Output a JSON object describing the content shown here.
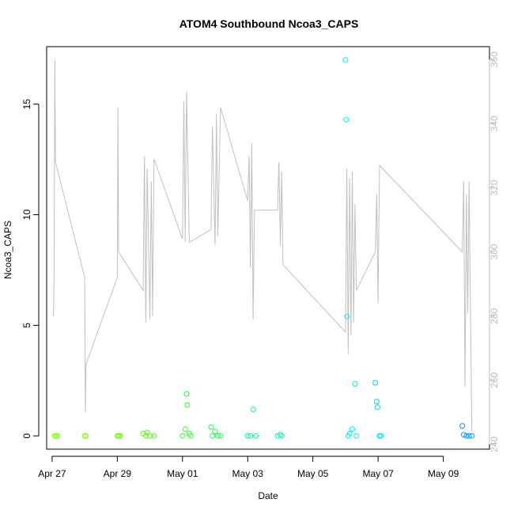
{
  "chart_data": {
    "type": "scatter",
    "title": "ATOM4 Southbound Ncoa3_CAPS",
    "xlabel": "Date",
    "ylabel": "Ncoa3_CAPS",
    "xlim": [
      "2025-04-26T20:00",
      "2025-05-10T10:00"
    ],
    "ylim": [
      -0.6,
      17.6
    ],
    "x_ticks": [
      "Apr 27",
      "Apr 29",
      "May 01",
      "May 03",
      "May 05",
      "May 07",
      "May 09"
    ],
    "y_ticks": [
      0,
      5,
      10,
      15
    ],
    "y2_ticks": [
      240,
      260,
      280,
      300,
      320,
      340,
      360
    ],
    "y2lim": [
      238.5,
      364
    ],
    "colors": {
      "line": "#c0c0c0",
      "axis": "#000000",
      "right_axis": "#bdbdbd",
      "palette": [
        "#7fff00",
        "#33ff33",
        "#00ff80",
        "#00ffcc",
        "#00e5ff",
        "#00aaff",
        "#007fff"
      ]
    },
    "points": [
      [
        "2025-04-27T02:00",
        0.0,
        "#7fff00"
      ],
      [
        "2025-04-27T03:00",
        0.0,
        "#7fff00"
      ],
      [
        "2025-04-27T04:00",
        0.0,
        "#7fff00"
      ],
      [
        "2025-04-28T00:00",
        0.0,
        "#7fff00"
      ],
      [
        "2025-04-28T01:00",
        0.0,
        "#7fff00"
      ],
      [
        "2025-04-29T00:00",
        0.0,
        "#66ff00"
      ],
      [
        "2025-04-29T01:00",
        0.0,
        "#66ff00"
      ],
      [
        "2025-04-29T02:00",
        0.0,
        "#66ff00"
      ],
      [
        "2025-04-29T19:00",
        0.1,
        "#55ff11"
      ],
      [
        "2025-04-29T21:00",
        0.0,
        "#55ff11"
      ],
      [
        "2025-04-29T22:00",
        0.15,
        "#55ff11"
      ],
      [
        "2025-04-30T00:00",
        0.0,
        "#55ff11"
      ],
      [
        "2025-04-30T03:00",
        0.0,
        "#55ff11"
      ],
      [
        "2025-05-01T00:00",
        0.0,
        "#33ff33"
      ],
      [
        "2025-05-01T02:00",
        0.3,
        "#33ff33"
      ],
      [
        "2025-05-01T03:00",
        1.9,
        "#33ff33"
      ],
      [
        "2025-05-01T03:30",
        1.4,
        "#33ff33"
      ],
      [
        "2025-05-01T05:00",
        0.1,
        "#33ff33"
      ],
      [
        "2025-05-01T06:00",
        0.0,
        "#33ff33"
      ],
      [
        "2025-05-01T21:00",
        0.4,
        "#22ff55"
      ],
      [
        "2025-05-01T22:00",
        0.0,
        "#22ff55"
      ],
      [
        "2025-05-02T00:00",
        0.2,
        "#22ff55"
      ],
      [
        "2025-05-02T02:00",
        0.0,
        "#22ff55"
      ],
      [
        "2025-05-02T04:00",
        0.0,
        "#22ff55"
      ],
      [
        "2025-05-03T00:00",
        0.0,
        "#00ff99"
      ],
      [
        "2025-05-03T02:00",
        0.0,
        "#00ff99"
      ],
      [
        "2025-05-03T04:00",
        1.2,
        "#00ff99"
      ],
      [
        "2025-05-03T06:00",
        0.0,
        "#00ff99"
      ],
      [
        "2025-05-03T22:00",
        0.0,
        "#00ffaa"
      ],
      [
        "2025-05-04T00:00",
        0.05,
        "#00ffaa"
      ],
      [
        "2025-05-04T01:00",
        0.0,
        "#00ffaa"
      ],
      [
        "2025-05-06T00:00",
        17.0,
        "#00f0ee"
      ],
      [
        "2025-05-06T00:30",
        14.3,
        "#00f0ee"
      ],
      [
        "2025-05-06T01:00",
        5.4,
        "#00f0ee"
      ],
      [
        "2025-05-06T02:00",
        0.0,
        "#00f0ee"
      ],
      [
        "2025-05-06T03:00",
        0.1,
        "#00f0ee"
      ],
      [
        "2025-05-06T05:00",
        0.3,
        "#00f0ee"
      ],
      [
        "2025-05-06T07:00",
        2.35,
        "#00f0ee"
      ],
      [
        "2025-05-06T08:00",
        0.0,
        "#00f0ee"
      ],
      [
        "2025-05-06T22:00",
        2.4,
        "#00ddee"
      ],
      [
        "2025-05-06T23:00",
        1.55,
        "#00ddee"
      ],
      [
        "2025-05-06T23:30",
        1.3,
        "#00ddee"
      ],
      [
        "2025-05-07T01:00",
        0.0,
        "#00ddee"
      ],
      [
        "2025-05-07T02:00",
        0.0,
        "#00ddee"
      ],
      [
        "2025-05-09T14:00",
        0.45,
        "#0099ff"
      ],
      [
        "2025-05-09T15:00",
        0.05,
        "#0099ff"
      ],
      [
        "2025-05-09T17:00",
        0.0,
        "#0099ff"
      ],
      [
        "2025-05-09T19:00",
        0.0,
        "#0099ff"
      ],
      [
        "2025-05-09T21:00",
        0.0,
        "#0099ff"
      ]
    ],
    "line_series": [
      [
        "2025-04-27T01:00",
        280
      ],
      [
        "2025-04-27T01:30",
        292
      ],
      [
        "2025-04-27T02:00",
        360
      ],
      [
        "2025-04-27T02:30",
        328
      ],
      [
        "2025-04-28T00:00",
        292
      ],
      [
        "2025-04-28T00:30",
        250
      ],
      [
        "2025-04-28T01:00",
        265
      ],
      [
        "2025-04-29T00:00",
        292
      ],
      [
        "2025-04-29T00:30",
        345
      ],
      [
        "2025-04-29T01:00",
        300
      ],
      [
        "2025-04-29T19:00",
        288
      ],
      [
        "2025-04-29T20:00",
        330
      ],
      [
        "2025-04-29T21:00",
        278
      ],
      [
        "2025-04-29T22:00",
        326
      ],
      [
        "2025-04-30T00:00",
        279
      ],
      [
        "2025-04-30T01:00",
        322
      ],
      [
        "2025-04-30T02:00",
        280
      ],
      [
        "2025-04-30T03:00",
        329
      ],
      [
        "2025-05-01T00:00",
        304
      ],
      [
        "2025-05-01T01:00",
        347
      ],
      [
        "2025-05-01T02:00",
        303
      ],
      [
        "2025-05-01T03:00",
        350
      ],
      [
        "2025-05-01T05:00",
        303
      ],
      [
        "2025-05-01T21:00",
        307
      ],
      [
        "2025-05-01T22:00",
        339
      ],
      [
        "2025-05-02T00:00",
        302
      ],
      [
        "2025-05-02T01:00",
        343
      ],
      [
        "2025-05-02T02:00",
        305
      ],
      [
        "2025-05-02T04:00",
        345
      ],
      [
        "2025-05-03T00:00",
        316
      ],
      [
        "2025-05-03T01:00",
        330
      ],
      [
        "2025-05-03T02:00",
        295
      ],
      [
        "2025-05-03T03:00",
        334
      ],
      [
        "2025-05-03T04:00",
        279
      ],
      [
        "2025-05-03T05:00",
        313
      ],
      [
        "2025-05-03T22:00",
        313
      ],
      [
        "2025-05-03T23:00",
        328
      ],
      [
        "2025-05-04T00:00",
        302
      ],
      [
        "2025-05-04T01:00",
        325
      ],
      [
        "2025-05-04T02:00",
        296
      ],
      [
        "2025-05-06T00:00",
        275
      ],
      [
        "2025-05-06T01:00",
        326
      ],
      [
        "2025-05-06T02:00",
        268
      ],
      [
        "2025-05-06T03:00",
        323
      ],
      [
        "2025-05-06T04:00",
        274
      ],
      [
        "2025-05-06T05:00",
        325
      ],
      [
        "2025-05-06T06:00",
        278
      ],
      [
        "2025-05-06T07:00",
        315
      ],
      [
        "2025-05-06T08:00",
        288
      ],
      [
        "2025-05-06T22:00",
        300
      ],
      [
        "2025-05-06T23:00",
        318
      ],
      [
        "2025-05-07T00:00",
        284
      ],
      [
        "2025-05-07T01:00",
        327
      ],
      [
        "2025-05-09T14:00",
        300
      ],
      [
        "2025-05-09T15:00",
        322
      ],
      [
        "2025-05-09T16:00",
        258
      ],
      [
        "2025-05-09T17:00",
        318
      ],
      [
        "2025-05-09T18:00",
        281
      ],
      [
        "2025-05-09T19:00",
        322
      ],
      [
        "2025-05-09T20:00",
        280
      ],
      [
        "2025-05-09T21:00",
        244
      ]
    ]
  }
}
